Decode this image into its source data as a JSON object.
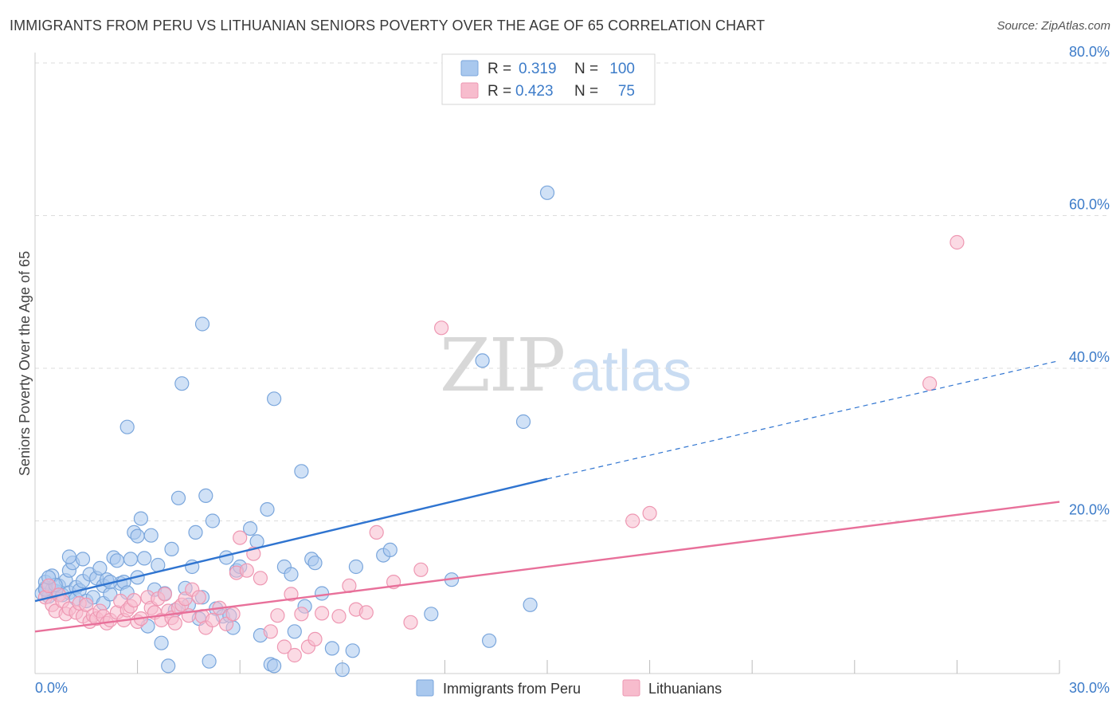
{
  "header": {
    "title": "IMMIGRANTS FROM PERU VS LITHUANIAN SENIORS POVERTY OVER THE AGE OF 65 CORRELATION CHART",
    "source": "Source: ZipAtlas.com"
  },
  "watermark": {
    "part1": "ZIP",
    "part2": "atlas"
  },
  "colors": {
    "peru_fill": "#a9c8ee",
    "peru_stroke": "#7aa6dc",
    "peru_line": "#2f74d0",
    "lith_fill": "#f7bccd",
    "lith_stroke": "#ee97b2",
    "lith_line": "#e8709a",
    "tick": "#3d7cc9",
    "grid": "#dddddd"
  },
  "legend_top": {
    "rows": [
      {
        "r_label": "R =",
        "r_value": "0.319",
        "n_label": "N =",
        "n_value": "100"
      },
      {
        "r_label": "R =",
        "r_value": "0.423",
        "n_label": "N =",
        "n_value": "75"
      }
    ]
  },
  "chart_data": {
    "type": "scatter",
    "title": "IMMIGRANTS FROM PERU VS LITHUANIAN SENIORS POVERTY OVER THE AGE OF 65 CORRELATION CHART",
    "xlabel": "",
    "ylabel": "Seniors Poverty Over the Age of 65",
    "xlim": [
      0,
      30
    ],
    "ylim": [
      0,
      80
    ],
    "x_tick_labels": {
      "min": "0.0%",
      "max": "30.0%"
    },
    "x_minor_ticks": [
      3,
      6,
      9,
      12,
      15,
      18,
      21,
      24,
      27
    ],
    "y_ticks": [
      {
        "value": 20,
        "label": "20.0%"
      },
      {
        "value": 40,
        "label": "40.0%"
      },
      {
        "value": 60,
        "label": "60.0%"
      },
      {
        "value": 80,
        "label": "80.0%"
      }
    ],
    "series": [
      {
        "name": "Immigrants from Peru",
        "key": "peru",
        "r": 0.319,
        "n": 100,
        "trend": {
          "x0": 0,
          "y0": 9.5,
          "x1": 15,
          "y1": 25.5,
          "dash_to_x": 30,
          "dash_to_y": 41.0
        },
        "points": [
          [
            0.2,
            10.5
          ],
          [
            0.3,
            11.2
          ],
          [
            0.3,
            12.0
          ],
          [
            0.4,
            10.1
          ],
          [
            0.5,
            11.0
          ],
          [
            0.5,
            12.8
          ],
          [
            0.6,
            10.8
          ],
          [
            0.7,
            11.5
          ],
          [
            0.8,
            10.3
          ],
          [
            0.9,
            12.2
          ],
          [
            1.0,
            10.6
          ],
          [
            1.0,
            13.5
          ],
          [
            1.1,
            14.5
          ],
          [
            1.2,
            11.3
          ],
          [
            1.2,
            9.8
          ],
          [
            1.3,
            10.9
          ],
          [
            1.4,
            12.1
          ],
          [
            1.4,
            15.0
          ],
          [
            1.5,
            9.5
          ],
          [
            1.6,
            13.0
          ],
          [
            1.7,
            10.0
          ],
          [
            1.8,
            12.5
          ],
          [
            1.9,
            13.8
          ],
          [
            2.0,
            11.5
          ],
          [
            2.0,
            9.2
          ],
          [
            2.1,
            12.3
          ],
          [
            2.2,
            10.4
          ],
          [
            2.3,
            15.2
          ],
          [
            2.4,
            14.8
          ],
          [
            2.5,
            11.8
          ],
          [
            2.6,
            12.0
          ],
          [
            2.7,
            10.6
          ],
          [
            2.8,
            15.0
          ],
          [
            2.9,
            18.5
          ],
          [
            3.0,
            12.6
          ],
          [
            3.1,
            20.3
          ],
          [
            3.2,
            15.1
          ],
          [
            3.3,
            6.2
          ],
          [
            3.4,
            18.1
          ],
          [
            3.5,
            11.0
          ],
          [
            3.6,
            14.2
          ],
          [
            3.7,
            4.0
          ],
          [
            3.8,
            10.5
          ],
          [
            3.9,
            1.0
          ],
          [
            4.0,
            16.3
          ],
          [
            4.1,
            8.3
          ],
          [
            4.2,
            23.0
          ],
          [
            4.3,
            38.0
          ],
          [
            4.4,
            11.2
          ],
          [
            4.5,
            9.0
          ],
          [
            4.6,
            14.0
          ],
          [
            4.7,
            18.5
          ],
          [
            4.8,
            7.2
          ],
          [
            4.9,
            10.0
          ],
          [
            5.0,
            23.3
          ],
          [
            5.1,
            1.6
          ],
          [
            5.2,
            20.0
          ],
          [
            5.3,
            8.5
          ],
          [
            5.5,
            7.5
          ],
          [
            5.6,
            15.2
          ],
          [
            5.8,
            6.0
          ],
          [
            5.9,
            13.5
          ],
          [
            6.0,
            14.0
          ],
          [
            6.3,
            19.0
          ],
          [
            6.5,
            17.3
          ],
          [
            6.6,
            5.0
          ],
          [
            6.8,
            21.5
          ],
          [
            6.9,
            1.2
          ],
          [
            7.0,
            1.0
          ],
          [
            7.3,
            14.0
          ],
          [
            7.5,
            13.0
          ],
          [
            7.6,
            5.5
          ],
          [
            7.9,
            8.8
          ],
          [
            8.1,
            15.0
          ],
          [
            8.2,
            14.5
          ],
          [
            8.4,
            10.5
          ],
          [
            2.7,
            32.3
          ],
          [
            4.9,
            45.8
          ],
          [
            7.0,
            36.0
          ],
          [
            7.8,
            26.5
          ],
          [
            8.7,
            3.3
          ],
          [
            9.0,
            0.5
          ],
          [
            9.3,
            3.0
          ],
          [
            9.4,
            14.0
          ],
          [
            10.2,
            15.5
          ],
          [
            10.4,
            16.2
          ],
          [
            11.6,
            7.8
          ],
          [
            12.2,
            12.3
          ],
          [
            13.1,
            41.0
          ],
          [
            13.3,
            4.3
          ],
          [
            14.3,
            33.0
          ],
          [
            14.5,
            9.0
          ],
          [
            15.0,
            63.0
          ],
          [
            1.0,
            15.3
          ],
          [
            0.3,
            11.0
          ],
          [
            2.2,
            12.0
          ],
          [
            3.0,
            18.0
          ],
          [
            0.6,
            11.6
          ],
          [
            0.4,
            12.6
          ],
          [
            5.7,
            7.6
          ]
        ]
      },
      {
        "name": "Lithuanians",
        "key": "lith",
        "r": 0.423,
        "n": 75,
        "trend": {
          "x0": 0,
          "y0": 5.5,
          "x1": 30,
          "y1": 22.5
        },
        "points": [
          [
            0.3,
            10.0
          ],
          [
            0.4,
            11.5
          ],
          [
            0.5,
            9.0
          ],
          [
            0.6,
            8.2
          ],
          [
            0.7,
            10.3
          ],
          [
            0.8,
            9.5
          ],
          [
            0.9,
            7.8
          ],
          [
            1.0,
            8.5
          ],
          [
            1.2,
            8.0
          ],
          [
            1.3,
            9.2
          ],
          [
            1.4,
            7.5
          ],
          [
            1.5,
            9.0
          ],
          [
            1.6,
            6.8
          ],
          [
            1.7,
            7.6
          ],
          [
            1.8,
            7.2
          ],
          [
            1.9,
            8.2
          ],
          [
            2.0,
            7.5
          ],
          [
            2.1,
            6.6
          ],
          [
            2.2,
            7.0
          ],
          [
            2.4,
            8.0
          ],
          [
            2.5,
            9.5
          ],
          [
            2.6,
            7.0
          ],
          [
            2.7,
            8.3
          ],
          [
            2.8,
            8.8
          ],
          [
            2.9,
            9.6
          ],
          [
            3.0,
            6.8
          ],
          [
            3.1,
            7.2
          ],
          [
            3.3,
            10.0
          ],
          [
            3.4,
            8.6
          ],
          [
            3.5,
            8.0
          ],
          [
            3.6,
            9.8
          ],
          [
            3.7,
            7.0
          ],
          [
            3.8,
            10.4
          ],
          [
            3.9,
            8.2
          ],
          [
            4.0,
            7.3
          ],
          [
            4.1,
            6.6
          ],
          [
            4.2,
            8.6
          ],
          [
            4.3,
            9.0
          ],
          [
            4.4,
            9.8
          ],
          [
            4.5,
            7.6
          ],
          [
            4.6,
            11.0
          ],
          [
            4.8,
            10.0
          ],
          [
            4.9,
            7.5
          ],
          [
            5.0,
            6.0
          ],
          [
            5.2,
            7.0
          ],
          [
            5.4,
            8.6
          ],
          [
            5.6,
            6.5
          ],
          [
            5.8,
            7.8
          ],
          [
            5.9,
            13.2
          ],
          [
            6.0,
            17.8
          ],
          [
            6.2,
            13.5
          ],
          [
            6.4,
            15.7
          ],
          [
            6.6,
            12.5
          ],
          [
            6.9,
            5.5
          ],
          [
            7.1,
            7.6
          ],
          [
            7.3,
            3.5
          ],
          [
            7.5,
            10.4
          ],
          [
            7.6,
            2.4
          ],
          [
            7.8,
            7.8
          ],
          [
            8.0,
            3.5
          ],
          [
            8.2,
            4.5
          ],
          [
            8.4,
            7.9
          ],
          [
            8.9,
            7.5
          ],
          [
            9.2,
            11.5
          ],
          [
            9.4,
            8.4
          ],
          [
            9.7,
            8.0
          ],
          [
            10.0,
            18.5
          ],
          [
            10.5,
            12.0
          ],
          [
            11.0,
            6.7
          ],
          [
            11.3,
            13.6
          ],
          [
            11.9,
            45.3
          ],
          [
            17.5,
            20.0
          ],
          [
            18.0,
            21.0
          ],
          [
            27.0,
            56.5
          ],
          [
            26.2,
            38.0
          ]
        ]
      }
    ]
  },
  "legend_bottom": {
    "items": [
      {
        "label": "Immigrants from Peru"
      },
      {
        "label": "Lithuanians"
      }
    ]
  }
}
